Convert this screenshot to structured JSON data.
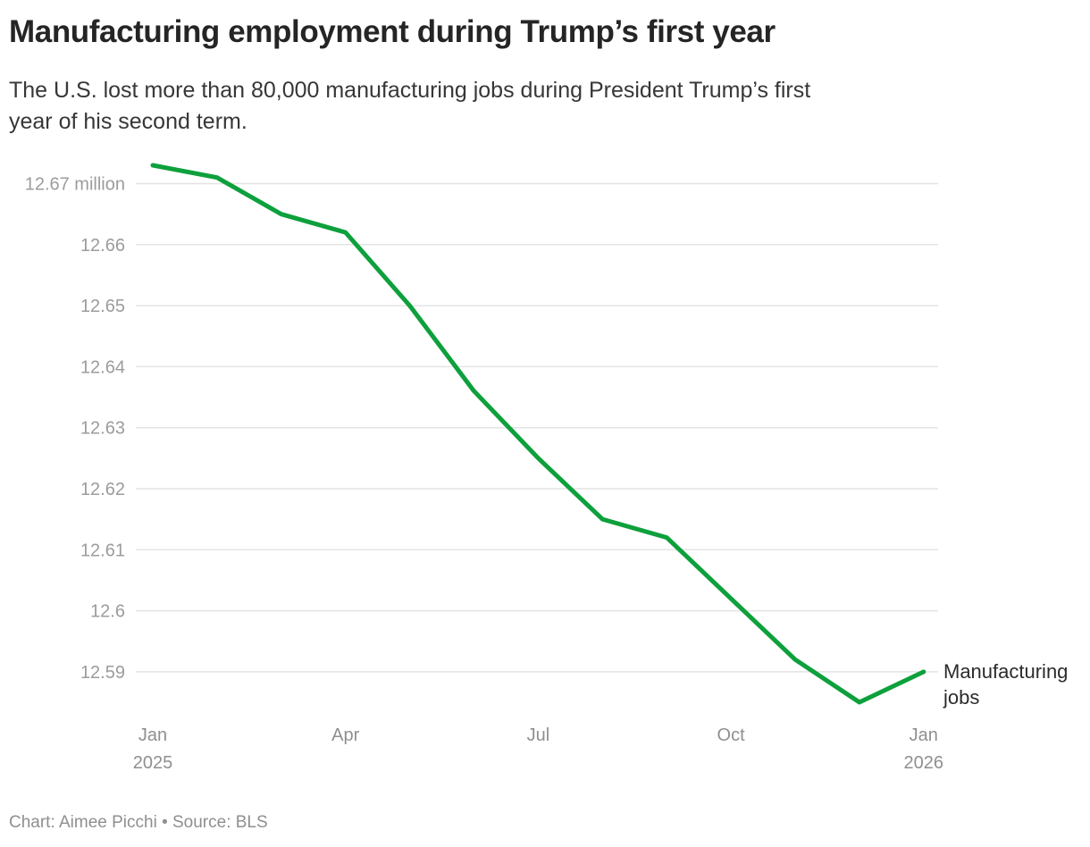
{
  "header": {
    "title": "Manufacturing employment during Trump’s first year",
    "subtitle_lines": [
      "The U.S. lost more than 80,000 manufacturing jobs during President Trump’s first",
      "year of his second term."
    ]
  },
  "chart_data": {
    "type": "line",
    "title": "Manufacturing employment during Trump’s first year",
    "unit": "million",
    "categories": [
      "Jan 2025",
      "Feb 2025",
      "Mar 2025",
      "Apr 2025",
      "May 2025",
      "Jun 2025",
      "Jul 2025",
      "Aug 2025",
      "Sep 2025",
      "Oct 2025",
      "Nov 2025",
      "Dec 2025",
      "Jan 2026"
    ],
    "series": [
      {
        "name": "Manufacturing jobs",
        "values": [
          12.673,
          12.671,
          12.665,
          12.662,
          12.65,
          12.636,
          12.625,
          12.615,
          12.612,
          12.602,
          12.592,
          12.585,
          12.59
        ]
      }
    ],
    "ylim": [
      12.585,
      12.673
    ],
    "grid": true,
    "legend_position": "end-of-line",
    "line_label_lines": [
      "Manufacturing",
      "jobs"
    ],
    "y_ticks": [
      {
        "value": 12.67,
        "label": "12.67 million"
      },
      {
        "value": 12.66,
        "label": "12.66"
      },
      {
        "value": 12.65,
        "label": "12.65"
      },
      {
        "value": 12.64,
        "label": "12.64"
      },
      {
        "value": 12.63,
        "label": "12.63"
      },
      {
        "value": 12.62,
        "label": "12.62"
      },
      {
        "value": 12.61,
        "label": "12.61"
      },
      {
        "value": 12.6,
        "label": "12.6"
      },
      {
        "value": 12.59,
        "label": "12.59"
      }
    ],
    "x_ticks": [
      {
        "index": 0,
        "label": "Jan",
        "sublabel": "2025"
      },
      {
        "index": 3,
        "label": "Apr",
        "sublabel": ""
      },
      {
        "index": 6,
        "label": "Jul",
        "sublabel": ""
      },
      {
        "index": 9,
        "label": "Oct",
        "sublabel": ""
      },
      {
        "index": 12,
        "label": "Jan",
        "sublabel": "2026"
      }
    ],
    "colors": {
      "line": "#0da03c",
      "grid": "#e4e4e4",
      "y_tick_text": "#9c9c9c",
      "x_tick_text": "#8f8f8f",
      "line_label_text": "#2b2b2b"
    }
  },
  "footer": {
    "credit": "Chart: Aimee Picchi • Source: BLS"
  }
}
